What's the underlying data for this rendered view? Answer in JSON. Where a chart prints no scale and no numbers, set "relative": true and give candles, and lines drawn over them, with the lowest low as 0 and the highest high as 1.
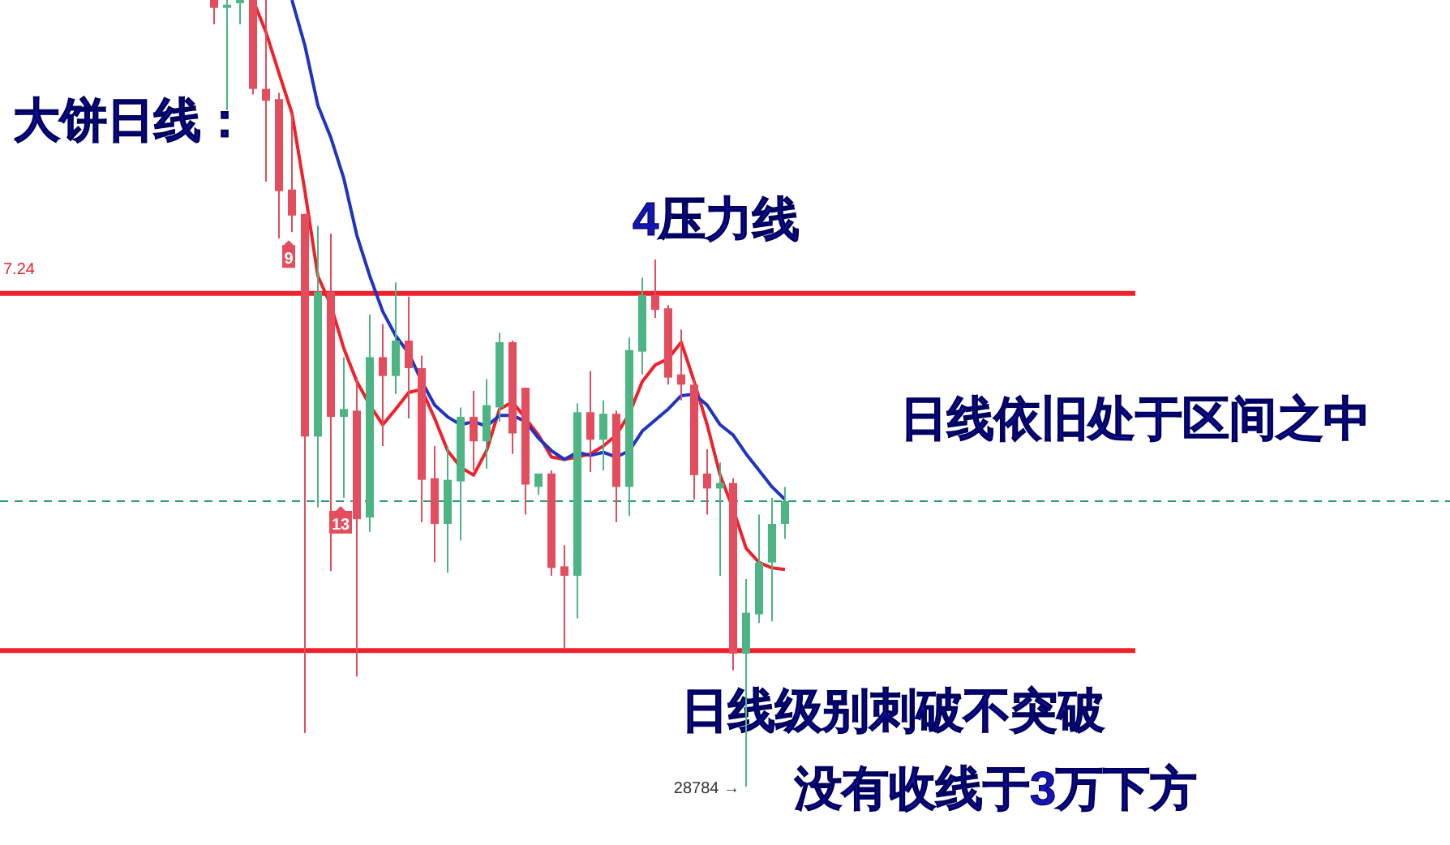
{
  "chart_data": {
    "type": "candlestick",
    "title": "大饼日线：",
    "relative": true,
    "categories": [
      null,
      null,
      null,
      null,
      null,
      null,
      null,
      null,
      null,
      null,
      null,
      null,
      null,
      null,
      null,
      null,
      null,
      null,
      null,
      null,
      null,
      null,
      null,
      null,
      null,
      null,
      null,
      null,
      null,
      null,
      null,
      null,
      null,
      null,
      null,
      null,
      null,
      null,
      null,
      null,
      null,
      null,
      null,
      null,
      null
    ],
    "ohlc": [
      [
        1.0,
        1.0,
        0.969,
        0.99
      ],
      [
        0.99,
        1.0,
        0.86,
        0.994
      ],
      [
        0.996,
        1.0,
        0.969,
        1.0
      ],
      [
        1.0,
        1.0,
        0.88,
        0.887
      ],
      [
        0.887,
        1.0,
        0.769,
        0.872
      ],
      [
        0.874,
        0.882,
        0.697,
        0.757
      ],
      [
        0.759,
        0.856,
        0.705,
        0.726
      ],
      [
        0.728,
        0.728,
        0.068,
        0.445
      ],
      [
        0.445,
        0.713,
        0.355,
        0.629
      ],
      [
        0.629,
        0.703,
        0.274,
        0.47
      ],
      [
        0.47,
        0.546,
        0.367,
        0.48
      ],
      [
        0.478,
        0.52,
        0.14,
        0.34
      ],
      [
        0.342,
        0.6,
        0.324,
        0.546
      ],
      [
        0.546,
        0.588,
        0.433,
        0.522
      ],
      [
        0.522,
        0.641,
        0.499,
        0.567
      ],
      [
        0.567,
        0.623,
        0.468,
        0.532
      ],
      [
        0.532,
        0.548,
        0.336,
        0.39
      ],
      [
        0.392,
        0.433,
        0.285,
        0.334
      ],
      [
        0.334,
        0.433,
        0.272,
        0.39
      ],
      [
        0.388,
        0.482,
        0.313,
        0.47
      ],
      [
        0.47,
        0.503,
        0.402,
        0.439
      ],
      [
        0.439,
        0.518,
        0.404,
        0.485
      ],
      [
        0.482,
        0.577,
        0.464,
        0.565
      ],
      [
        0.565,
        0.567,
        0.423,
        0.449
      ],
      [
        0.507,
        0.507,
        0.346,
        0.384
      ],
      [
        0.381,
        0.398,
        0.371,
        0.398
      ],
      [
        0.398,
        0.402,
        0.268,
        0.278
      ],
      [
        0.28,
        0.307,
        0.175,
        0.268
      ],
      [
        0.268,
        0.487,
        0.214,
        0.476
      ],
      [
        0.476,
        0.528,
        0.4,
        0.441
      ],
      [
        0.441,
        0.491,
        0.402,
        0.474
      ],
      [
        0.474,
        0.478,
        0.336,
        0.381
      ],
      [
        0.381,
        0.571,
        0.344,
        0.555
      ],
      [
        0.553,
        0.647,
        0.524,
        0.625
      ],
      [
        0.625,
        0.67,
        0.596,
        0.606
      ],
      [
        0.608,
        0.612,
        0.511,
        0.52
      ],
      [
        0.524,
        0.581,
        0.491,
        0.511
      ],
      [
        0.511,
        0.518,
        0.365,
        0.396
      ],
      [
        0.398,
        0.429,
        0.346,
        0.379
      ],
      [
        0.379,
        0.412,
        0.268,
        0.386
      ],
      [
        0.386,
        0.392,
        0.148,
        0.169
      ],
      [
        0.169,
        0.264,
        0.0,
        0.221
      ],
      [
        0.219,
        0.346,
        0.208,
        0.285
      ],
      [
        0.285,
        0.367,
        0.21,
        0.334
      ],
      [
        0.334,
        0.381,
        0.315,
        0.363
      ]
    ],
    "series": [
      {
        "type": "line",
        "color": "#f0202a",
        "values": [
          null,
          null,
          null,
          1.0,
          0.959,
          0.907,
          0.856,
          0.757,
          0.649,
          0.612,
          0.557,
          0.515,
          0.485,
          0.46,
          0.48,
          0.501,
          0.505,
          0.468,
          0.427,
          0.406,
          0.396,
          0.427,
          0.48,
          0.489,
          0.468,
          0.447,
          0.419,
          0.416,
          0.419,
          0.423,
          0.433,
          0.447,
          0.474,
          0.515,
          0.536,
          0.544,
          0.565,
          0.515,
          0.46,
          0.396,
          0.353,
          0.303,
          0.285,
          0.278,
          0.276
        ]
      },
      {
        "type": "line",
        "color": "#1f35c0",
        "values": [
          null,
          null,
          null,
          null,
          null,
          null,
          1.0,
          0.942,
          0.866,
          0.825,
          0.773,
          0.701,
          0.649,
          0.604,
          0.573,
          0.551,
          0.515,
          0.485,
          0.47,
          0.46,
          0.464,
          0.458,
          0.472,
          0.472,
          0.464,
          0.443,
          0.427,
          0.416,
          0.425,
          0.421,
          0.425,
          0.419,
          0.427,
          0.452,
          0.466,
          0.48,
          0.497,
          0.499,
          0.485,
          0.46,
          0.447,
          0.423,
          0.402,
          0.381,
          0.365
        ]
      }
    ],
    "ref_lines": [
      {
        "axis": "y",
        "value": 0.627,
        "color": "#f0202a",
        "line_style": "solid"
      },
      {
        "axis": "y",
        "value": 0.173,
        "color": "#f0202a",
        "line_style": "solid"
      },
      {
        "axis": "y",
        "value": 0.363,
        "color": "#26a06b",
        "line_style": "dashed"
      }
    ],
    "annotations": [
      "4压力线",
      "日线依旧处于区间之中",
      "日线级别刺破不突破",
      "没有收线于3万下方",
      "9",
      "13",
      "28784 →",
      "7.24"
    ]
  }
}
